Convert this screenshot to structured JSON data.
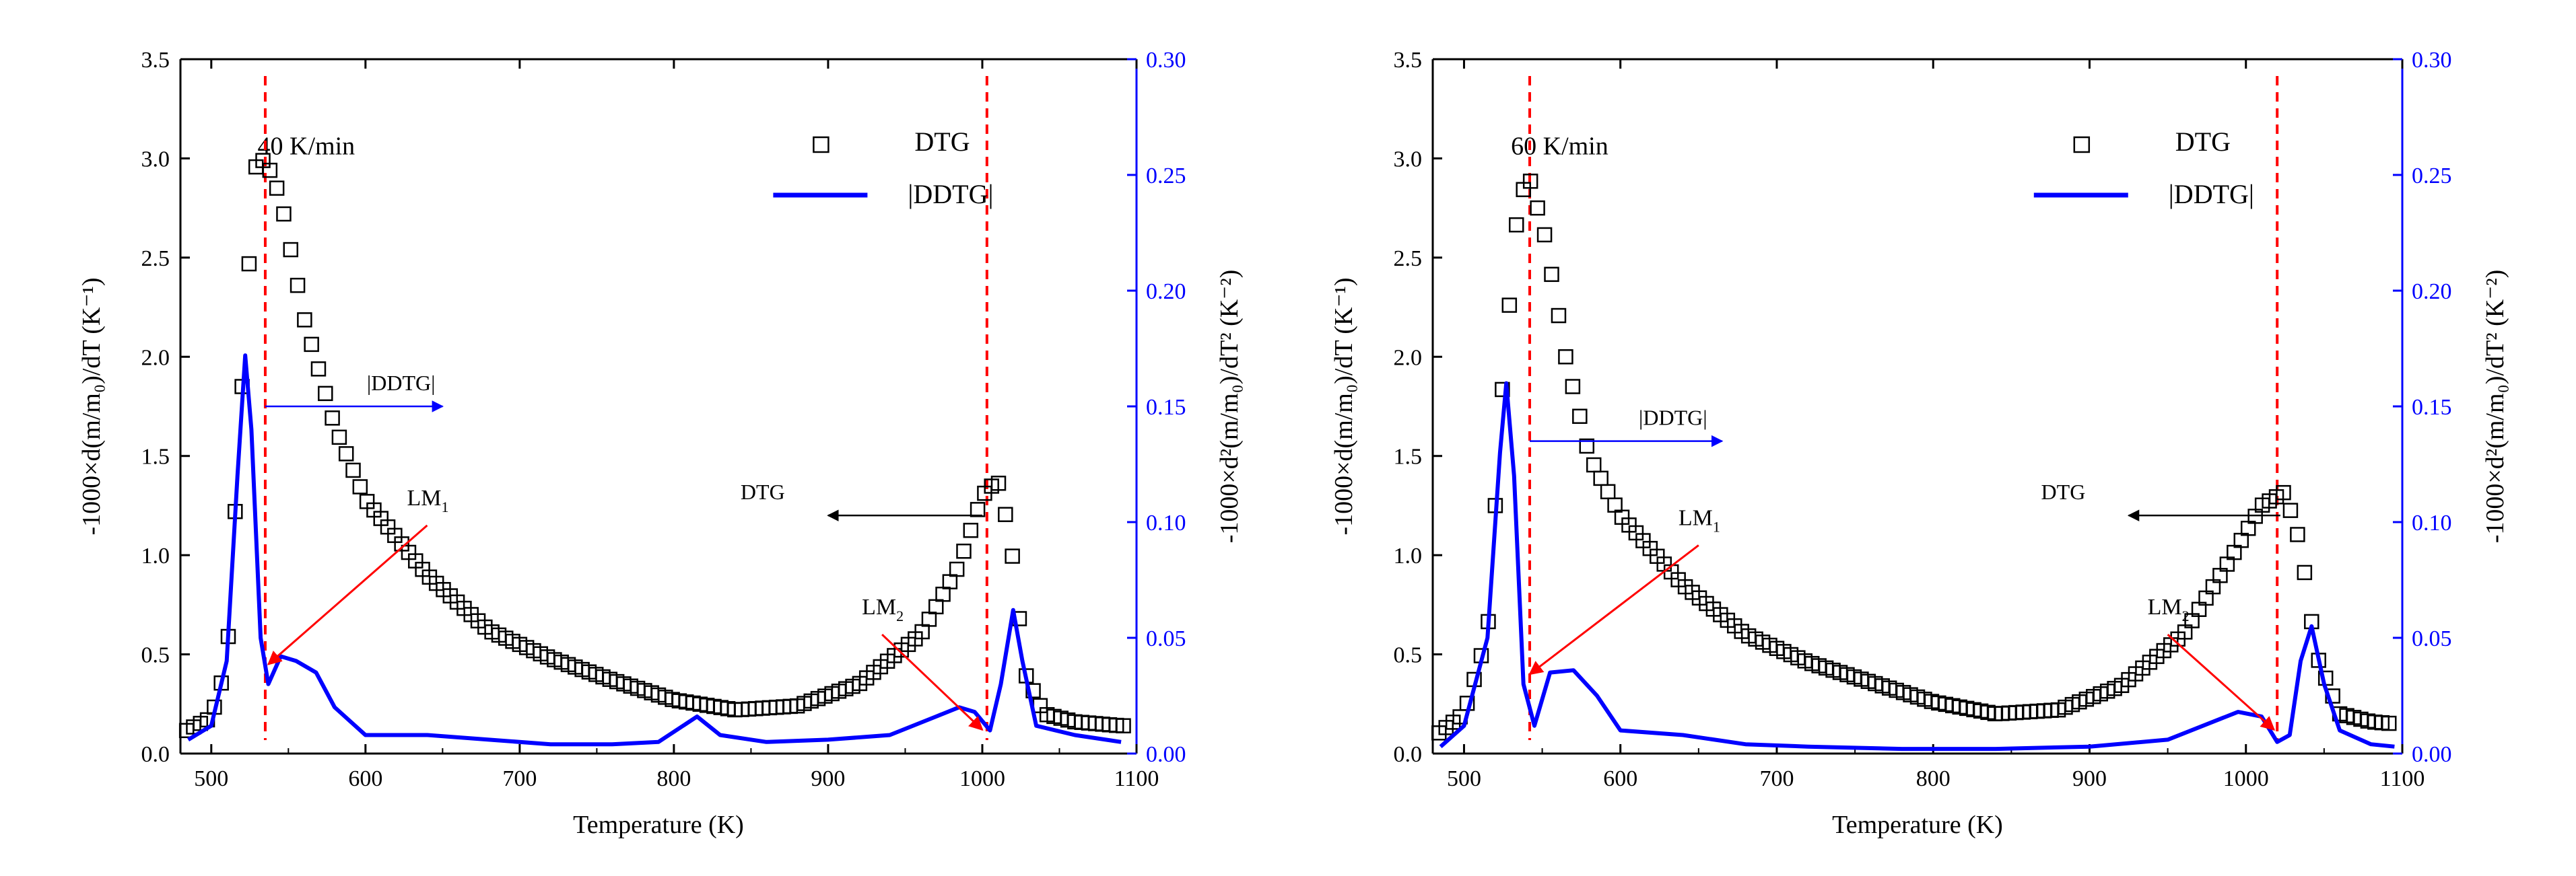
{
  "figure": {
    "panels_count": 2
  },
  "chart_data": [
    {
      "type": "scatter",
      "title": "40 K/min",
      "xlabel": "Temperature (K)",
      "ylabel_left": "-1000×d(m/m₀)/dT (K⁻¹)",
      "ylabel_right": "-1000×d²(m/m₀)/dT² (K⁻²)",
      "xlim": [
        480,
        1100
      ],
      "ylim_left": [
        0,
        3.5
      ],
      "ylim_right": [
        0,
        0.3
      ],
      "x_ticks": [
        "500",
        "600",
        "700",
        "800",
        "900",
        "1000",
        "1100"
      ],
      "y_left_ticks": [
        "0.0",
        "0.5",
        "1.0",
        "1.5",
        "2.0",
        "2.5",
        "3.0",
        "3.5"
      ],
      "y_right_ticks": [
        "0.00",
        "0.05",
        "0.10",
        "0.15",
        "0.20",
        "0.25",
        "0.30"
      ],
      "legend": {
        "position": "top-right",
        "entries": [
          "DTG",
          "|DDTG|"
        ]
      },
      "colors": {
        "dtg": "#000000",
        "ddtg": "#0000ff",
        "right_axis": "#0000ff",
        "guide": "#ff0000"
      },
      "series": [
        {
          "name": "DTG",
          "axis": "left",
          "marker": "open-square",
          "points": [
            [
              480,
              0.1
            ],
            [
              500,
              0.18
            ],
            [
              510,
              0.45
            ],
            [
              520,
              1.85
            ],
            [
              528,
              2.95
            ],
            [
              535,
              3.0
            ],
            [
              545,
              2.8
            ],
            [
              560,
              2.2
            ],
            [
              580,
              1.65
            ],
            [
              600,
              1.28
            ],
            [
              640,
              0.9
            ],
            [
              680,
              0.62
            ],
            [
              720,
              0.48
            ],
            [
              760,
              0.37
            ],
            [
              800,
              0.27
            ],
            [
              840,
              0.22
            ],
            [
              880,
              0.24
            ],
            [
              920,
              0.35
            ],
            [
              960,
              0.6
            ],
            [
              985,
              0.95
            ],
            [
              1000,
              1.3
            ],
            [
              1010,
              1.38
            ],
            [
              1018,
              1.1
            ],
            [
              1028,
              0.4
            ],
            [
              1040,
              0.2
            ],
            [
              1060,
              0.16
            ],
            [
              1090,
              0.14
            ]
          ]
        },
        {
          "name": "|DDTG|",
          "axis": "right",
          "style": "line",
          "points": [
            [
              485,
              0.006
            ],
            [
              500,
              0.012
            ],
            [
              510,
              0.04
            ],
            [
              517,
              0.12
            ],
            [
              522,
              0.172
            ],
            [
              526,
              0.14
            ],
            [
              532,
              0.05
            ],
            [
              537,
              0.03
            ],
            [
              545,
              0.042
            ],
            [
              555,
              0.04
            ],
            [
              568,
              0.035
            ],
            [
              580,
              0.02
            ],
            [
              600,
              0.008
            ],
            [
              640,
              0.008
            ],
            [
              680,
              0.006
            ],
            [
              720,
              0.004
            ],
            [
              760,
              0.004
            ],
            [
              790,
              0.005
            ],
            [
              815,
              0.016
            ],
            [
              830,
              0.008
            ],
            [
              860,
              0.005
            ],
            [
              900,
              0.006
            ],
            [
              940,
              0.008
            ],
            [
              970,
              0.016
            ],
            [
              985,
              0.02
            ],
            [
              995,
              0.018
            ],
            [
              1005,
              0.01
            ],
            [
              1012,
              0.03
            ],
            [
              1020,
              0.062
            ],
            [
              1026,
              0.04
            ],
            [
              1035,
              0.012
            ],
            [
              1060,
              0.008
            ],
            [
              1090,
              0.005
            ]
          ]
        }
      ],
      "guides": [
        {
          "x": 535,
          "label": ""
        },
        {
          "x": 1003,
          "label": ""
        }
      ],
      "annotations": [
        {
          "type": "arrow-label",
          "text": "|DDTG|",
          "direction": "right",
          "color": "#0000ff",
          "data_x": [
            535,
            650
          ],
          "data_y_right": 0.15
        },
        {
          "type": "arrow-label",
          "text": "DTG",
          "direction": "left",
          "color": "#000000",
          "data_x": [
            900,
            1000
          ],
          "data_y_left": 1.2
        },
        {
          "type": "arrow-label",
          "base": "LM",
          "sub": "1",
          "color": "#ff0000",
          "points_to": [
            537,
            0.45
          ],
          "from": [
            640,
            1.15
          ]
        },
        {
          "type": "arrow-label",
          "base": "LM",
          "sub": "2",
          "color": "#ff0000",
          "points_to": [
            1000,
            0.12
          ],
          "from": [
            935,
            0.6
          ]
        }
      ]
    },
    {
      "type": "scatter",
      "title": "60 K/min",
      "xlabel": "Temperature (K)",
      "ylabel_left": "-1000×d(m/m₀)/dT (K⁻¹)",
      "ylabel_right": "-1000×d²(m/m₀)/dT² (K⁻²)",
      "xlim": [
        480,
        1100
      ],
      "ylim_left": [
        0,
        3.5
      ],
      "ylim_right": [
        0,
        0.3
      ],
      "x_ticks": [
        "500",
        "600",
        "700",
        "800",
        "900",
        "1000",
        "1100"
      ],
      "y_left_ticks": [
        "0.0",
        "0.5",
        "1.0",
        "1.5",
        "2.0",
        "2.5",
        "3.0",
        "3.5"
      ],
      "y_right_ticks": [
        "0.00",
        "0.05",
        "0.10",
        "0.15",
        "0.20",
        "0.25",
        "0.30"
      ],
      "legend": {
        "position": "top-right",
        "entries": [
          "DTG",
          "|DDTG|"
        ]
      },
      "colors": {
        "dtg": "#000000",
        "ddtg": "#0000ff",
        "right_axis": "#0000ff",
        "guide": "#ff0000"
      },
      "series": [
        {
          "name": "DTG",
          "axis": "left",
          "marker": "open-square",
          "points": [
            [
              480,
              0.08
            ],
            [
              500,
              0.2
            ],
            [
              515,
              0.6
            ],
            [
              525,
              1.9
            ],
            [
              535,
              2.8
            ],
            [
              542,
              2.9
            ],
            [
              552,
              2.6
            ],
            [
              565,
              2.0
            ],
            [
              580,
              1.5
            ],
            [
              600,
              1.2
            ],
            [
              640,
              0.85
            ],
            [
              680,
              0.6
            ],
            [
              720,
              0.46
            ],
            [
              760,
              0.36
            ],
            [
              800,
              0.26
            ],
            [
              840,
              0.2
            ],
            [
              880,
              0.22
            ],
            [
              920,
              0.34
            ],
            [
              960,
              0.6
            ],
            [
              990,
              0.98
            ],
            [
              1010,
              1.25
            ],
            [
              1025,
              1.32
            ],
            [
              1035,
              1.05
            ],
            [
              1045,
              0.5
            ],
            [
              1060,
              0.2
            ],
            [
              1080,
              0.16
            ],
            [
              1095,
              0.15
            ]
          ]
        },
        {
          "name": "|DDTG|",
          "axis": "right",
          "style": "line",
          "points": [
            [
              485,
              0.003
            ],
            [
              500,
              0.012
            ],
            [
              515,
              0.05
            ],
            [
              523,
              0.13
            ],
            [
              527,
              0.16
            ],
            [
              532,
              0.12
            ],
            [
              538,
              0.03
            ],
            [
              545,
              0.012
            ],
            [
              555,
              0.035
            ],
            [
              570,
              0.036
            ],
            [
              585,
              0.025
            ],
            [
              600,
              0.01
            ],
            [
              640,
              0.008
            ],
            [
              680,
              0.004
            ],
            [
              720,
              0.003
            ],
            [
              780,
              0.002
            ],
            [
              840,
              0.002
            ],
            [
              900,
              0.003
            ],
            [
              950,
              0.006
            ],
            [
              980,
              0.014
            ],
            [
              995,
              0.018
            ],
            [
              1010,
              0.016
            ],
            [
              1020,
              0.005
            ],
            [
              1028,
              0.008
            ],
            [
              1035,
              0.04
            ],
            [
              1042,
              0.055
            ],
            [
              1050,
              0.03
            ],
            [
              1060,
              0.01
            ],
            [
              1080,
              0.004
            ],
            [
              1095,
              0.003
            ]
          ]
        }
      ],
      "guides": [
        {
          "x": 542,
          "label": ""
        },
        {
          "x": 1020,
          "label": ""
        }
      ],
      "annotations": [
        {
          "type": "arrow-label",
          "text": "|DDTG|",
          "direction": "right",
          "color": "#0000ff",
          "data_x": [
            542,
            665
          ],
          "data_y_right": 0.135
        },
        {
          "type": "arrow-label",
          "text": "DTG",
          "direction": "left",
          "color": "#000000",
          "data_x": [
            925,
            1022
          ],
          "data_y_left": 1.2
        },
        {
          "type": "arrow-label",
          "base": "LM",
          "sub": "1",
          "color": "#ff0000",
          "points_to": [
            542,
            0.4
          ],
          "from": [
            650,
            1.05
          ]
        },
        {
          "type": "arrow-label",
          "base": "LM",
          "sub": "2",
          "color": "#ff0000",
          "points_to": [
            1018,
            0.12
          ],
          "from": [
            950,
            0.6
          ]
        }
      ]
    }
  ]
}
